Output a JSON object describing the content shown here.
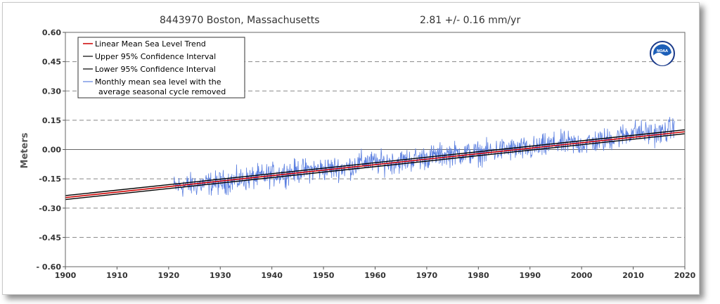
{
  "chart_data": {
    "type": "line",
    "title": "8443970 Boston, Massachusetts",
    "trend_label": "2.81 +/-  0.16 mm/yr",
    "ylabel": "Meters",
    "xlabel": "",
    "xlim": [
      1900,
      2020
    ],
    "ylim": [
      -0.6,
      0.6
    ],
    "x_ticks": [
      "1900",
      "1910",
      "1920",
      "1930",
      "1940",
      "1950",
      "1960",
      "1970",
      "1980",
      "1990",
      "2000",
      "2010",
      "2020"
    ],
    "y_ticks": [
      "0.60",
      "0.45",
      "0.30",
      "0.15",
      "0.00",
      "-0.15",
      "-0.30",
      "-0.45",
      "- 0.60"
    ],
    "grid": "horizontal-dashed",
    "legend_placement": "top-left",
    "legend": [
      {
        "label": "Linear Mean Sea Level Trend",
        "color": "#cc0000"
      },
      {
        "label": "Upper 95% Confidence Interval",
        "color": "#000000"
      },
      {
        "label": "Lower 95% Confidence Interval",
        "color": "#000000"
      },
      {
        "label": "Monthly mean sea level with the",
        "label2": "average seasonal cycle removed",
        "color": "#5b7fe0"
      }
    ],
    "trend": {
      "x": [
        1900,
        2020
      ],
      "y": [
        -0.246,
        0.091
      ]
    },
    "upper_ci": {
      "x": [
        1900,
        2020
      ],
      "y": [
        -0.236,
        0.101
      ]
    },
    "lower_ci": {
      "x": [
        1900,
        2020
      ],
      "y": [
        -0.256,
        0.081
      ]
    },
    "monthly_series": {
      "name": "Monthly mean sea level with the average seasonal cycle removed",
      "color": "#5b7fe0",
      "x_start": 1921.0,
      "x_end": 2018.0,
      "key_points": {
        "x": [
          1921,
          1925,
          1930,
          1935,
          1940,
          1945,
          1950,
          1955,
          1958,
          1960,
          1965,
          1970,
          1975,
          1980,
          1985,
          1990,
          1995,
          2000,
          2005,
          2010,
          2015,
          2018
        ],
        "y": [
          -0.19,
          -0.18,
          -0.17,
          -0.15,
          -0.13,
          -0.11,
          -0.1,
          -0.09,
          -0.06,
          -0.07,
          -0.06,
          -0.04,
          -0.02,
          -0.02,
          0.0,
          0.0,
          0.03,
          0.03,
          0.05,
          0.09,
          0.08,
          0.11
        ]
      }
    }
  },
  "logo": {
    "name": "noaa-logo",
    "text": "NOAA"
  }
}
